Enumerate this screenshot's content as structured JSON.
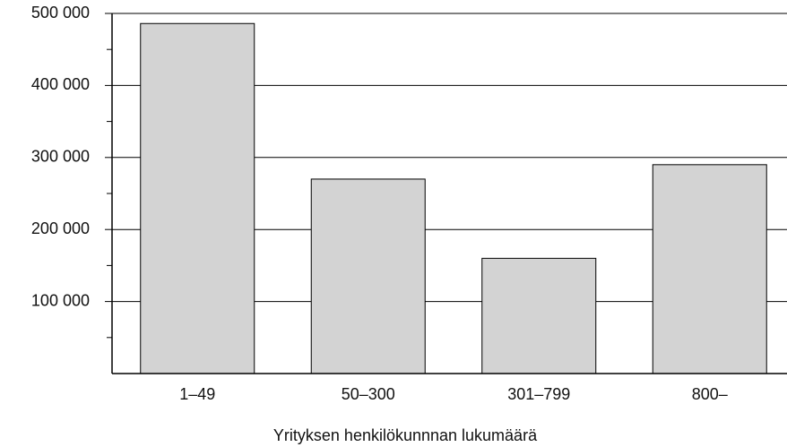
{
  "chart_data": {
    "type": "bar",
    "x_label": "Yrityksen henkilökunnnan lukumäärä",
    "categories": [
      "1–49",
      "50–300",
      "301–799",
      "800–"
    ],
    "values": [
      486000,
      270000,
      160000,
      290000
    ],
    "color": "#d3d3d3",
    "ylim": [
      0,
      500000
    ],
    "yticks": [
      {
        "value": 100000,
        "label": "100 000"
      },
      {
        "value": 200000,
        "label": "200 000"
      },
      {
        "value": 300000,
        "label": "300 000"
      },
      {
        "value": 400000,
        "label": "400 000"
      },
      {
        "value": 500000,
        "label": "500 000"
      }
    ],
    "yminor": [
      50000,
      150000,
      250000,
      350000,
      450000
    ],
    "grid": true
  }
}
